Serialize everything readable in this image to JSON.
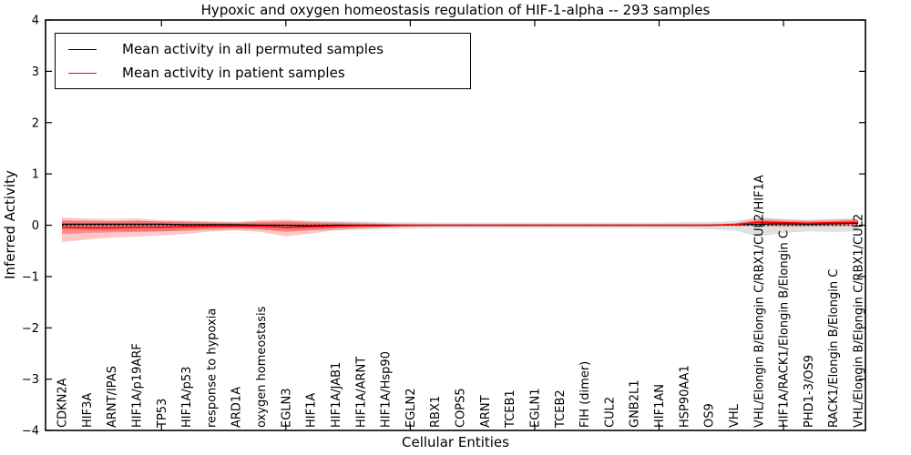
{
  "title": "Hypoxic and oxygen homeostasis regulation of HIF-1-alpha -- 293 samples",
  "legend": {
    "items": [
      {
        "label": "Mean activity in all permuted samples",
        "color": "#000000"
      },
      {
        "label": "Mean activity in patient samples",
        "color": "#ff0000"
      }
    ]
  },
  "chart_data": {
    "type": "line",
    "title": "Hypoxic and oxygen homeostasis regulation of HIF-1-alpha -- 293 samples",
    "xlabel": "Cellular Entities",
    "ylabel": "Inferred Activity",
    "ylim": [
      -4,
      4
    ],
    "yticks": [
      4,
      3,
      2,
      1,
      0,
      -1,
      -2,
      -3,
      -4
    ],
    "ytick_labels": [
      "4",
      "3",
      "2",
      "1",
      "0",
      "−1",
      "−2",
      "−3",
      "−4"
    ],
    "grid": false,
    "legend_position": "upper left",
    "categories": [
      "CDKN2A",
      "HIF3A",
      "ARNT/IPAS",
      "HIF1A/p19ARF",
      "TP53",
      "HIF1A/p53",
      "response to hypoxia",
      "ARD1A",
      "oxygen homeostasis",
      "EGLN3",
      "HIF1A",
      "HIF1A/JAB1",
      "HIF1A/ARNT",
      "HIF1A/Hsp90",
      "EGLN2",
      "RBX1",
      "COPS5",
      "ARNT",
      "TCEB1",
      "EGLN1",
      "TCEB2",
      "FIH (dimer)",
      "CUL2",
      "GNB2L1",
      "HIF1AN",
      "HSP90AA1",
      "OS9",
      "VHL",
      "VHL/Elongin B/Elongin C/RBX1/CUL2/HIF1A",
      "HIF1A/RACK1/Elongin B/Elongin C",
      "PHD1-3/OS9",
      "RACK1/Elongin B/Elongin C",
      "VHL/Elongin B/Elongin C/RBX1/CUL2"
    ],
    "xtick_category_indices": [
      4,
      9,
      14,
      19,
      24,
      29
    ],
    "series": [
      {
        "name": "Mean activity in all permuted samples",
        "color": "#000000",
        "values": [
          0.02,
          0.02,
          0.02,
          0.02,
          0.02,
          0.01,
          0.01,
          0.01,
          0.0,
          0.0,
          -0.01,
          0.0,
          0.0,
          0.0,
          0.0,
          0.0,
          0.0,
          0.0,
          0.0,
          0.0,
          0.0,
          0.0,
          0.0,
          0.0,
          0.0,
          0.0,
          0.0,
          0.01,
          0.02,
          0.03,
          0.02,
          0.03,
          0.04
        ]
      },
      {
        "name": "Mean activity in patient samples",
        "color": "#ff0000",
        "values": [
          -0.04,
          -0.05,
          -0.05,
          -0.04,
          -0.04,
          -0.03,
          -0.02,
          -0.02,
          -0.02,
          -0.04,
          -0.03,
          -0.02,
          -0.01,
          -0.01,
          0.0,
          0.0,
          0.0,
          0.0,
          0.0,
          0.0,
          0.0,
          0.0,
          0.0,
          0.0,
          0.0,
          0.0,
          0.0,
          0.01,
          0.06,
          0.05,
          0.04,
          0.05,
          0.06
        ]
      }
    ],
    "bands": [
      {
        "name": "permuted-std-band",
        "color": "#999999",
        "opacity": 0.3,
        "hi": [
          0.07,
          0.07,
          0.07,
          0.08,
          0.08,
          0.08,
          0.07,
          0.07,
          0.07,
          0.08,
          0.08,
          0.08,
          0.07,
          0.06,
          0.06,
          0.05,
          0.05,
          0.05,
          0.05,
          0.05,
          0.05,
          0.05,
          0.05,
          0.05,
          0.05,
          0.06,
          0.06,
          0.08,
          0.16,
          0.12,
          0.1,
          0.12,
          0.14
        ],
        "lo": [
          -0.09,
          -0.1,
          -0.11,
          -0.12,
          -0.12,
          -0.11,
          -0.1,
          -0.09,
          -0.09,
          -0.1,
          -0.1,
          -0.1,
          -0.09,
          -0.08,
          -0.07,
          -0.06,
          -0.06,
          -0.06,
          -0.06,
          -0.06,
          -0.06,
          -0.06,
          -0.06,
          -0.06,
          -0.07,
          -0.07,
          -0.08,
          -0.1,
          -0.22,
          -0.15,
          -0.12,
          -0.13,
          -0.12
        ]
      },
      {
        "name": "patient-std-outer-band",
        "color": "#ff0000",
        "opacity": 0.22,
        "hi": [
          0.15,
          0.13,
          0.12,
          0.13,
          0.1,
          0.09,
          0.07,
          0.06,
          0.1,
          0.11,
          0.08,
          0.06,
          0.05,
          0.03,
          0.02,
          0.01,
          0.01,
          0.01,
          0.01,
          0.01,
          0.01,
          0.01,
          0.01,
          0.01,
          0.01,
          0.01,
          0.02,
          0.04,
          0.13,
          0.11,
          0.1,
          0.11,
          0.12
        ],
        "lo": [
          -0.33,
          -0.28,
          -0.24,
          -0.22,
          -0.2,
          -0.17,
          -0.12,
          -0.1,
          -0.13,
          -0.22,
          -0.16,
          -0.1,
          -0.07,
          -0.04,
          -0.03,
          -0.02,
          -0.02,
          -0.02,
          -0.02,
          -0.02,
          -0.02,
          -0.02,
          -0.02,
          -0.02,
          -0.02,
          -0.02,
          -0.02,
          -0.01,
          -0.02,
          -0.03,
          -0.03,
          -0.02,
          -0.02
        ]
      },
      {
        "name": "patient-std-inner-band",
        "color": "#ff0000",
        "opacity": 0.3,
        "hi": [
          0.1,
          0.09,
          0.08,
          0.09,
          0.07,
          0.06,
          0.05,
          0.04,
          0.06,
          0.07,
          0.05,
          0.04,
          0.03,
          0.02,
          0.01,
          0.01,
          0.01,
          0.01,
          0.01,
          0.01,
          0.01,
          0.01,
          0.01,
          0.01,
          0.01,
          0.01,
          0.01,
          0.03,
          0.1,
          0.08,
          0.07,
          0.08,
          0.1
        ],
        "lo": [
          -0.17,
          -0.15,
          -0.14,
          -0.13,
          -0.12,
          -0.1,
          -0.07,
          -0.06,
          -0.08,
          -0.13,
          -0.1,
          -0.06,
          -0.04,
          -0.03,
          -0.02,
          -0.01,
          -0.01,
          -0.01,
          -0.01,
          -0.01,
          -0.01,
          -0.01,
          -0.01,
          -0.01,
          -0.01,
          -0.01,
          -0.01,
          0.0,
          0.01,
          -0.01,
          -0.01,
          0.0,
          0.01
        ]
      }
    ],
    "zero_line": {
      "style": "dotted",
      "color": "#000000",
      "y": 0
    }
  }
}
